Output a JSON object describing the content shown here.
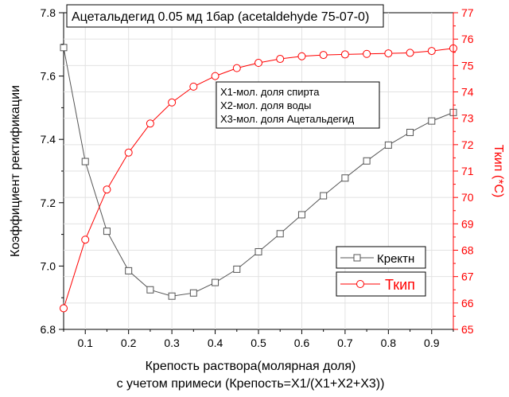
{
  "chart_data": {
    "type": "line",
    "title": "Ацетальдегид  0.05 мд 1бар (acetaldehyde 75-07-0)",
    "xlabel_line1": "Крепость раствора(молярная доля)",
    "xlabel_line2": "с учетом примеси (Крепость=X1/(X1+X2+X3))",
    "ylabel_left": "Коэффициент ректификации",
    "ylabel_right": "Ткип (*C)",
    "xlim": [
      0.05,
      0.95
    ],
    "ylim_left": [
      6.8,
      7.8
    ],
    "ylim_right": [
      65,
      77
    ],
    "xticks": [
      0.1,
      0.2,
      0.3,
      0.4,
      0.5,
      0.6,
      0.7,
      0.8,
      0.9
    ],
    "xtick_labels": [
      "0.1",
      "0.2",
      "0.3",
      "0.4",
      "0.5",
      "0.6",
      "0.7",
      "0.8",
      "0.9"
    ],
    "yticks_left": [
      6.8,
      7.0,
      7.2,
      7.4,
      7.6,
      7.8
    ],
    "ytick_labels_left": [
      "6.8",
      "7.0",
      "7.2",
      "7.4",
      "7.6",
      "7.8"
    ],
    "yticks_right": [
      65,
      66,
      67,
      68,
      69,
      70,
      71,
      72,
      73,
      74,
      75,
      76,
      77
    ],
    "ytick_labels_right": [
      "65",
      "66",
      "67",
      "68",
      "69",
      "70",
      "71",
      "72",
      "73",
      "74",
      "75",
      "76",
      "77"
    ],
    "grid": true,
    "annotation_lines": [
      "X1-мол. доля спирта",
      "X2-мол. доля воды",
      "X3-мол. доля Ацетальдегид"
    ],
    "x": [
      0.05,
      0.1,
      0.15,
      0.2,
      0.25,
      0.3,
      0.35,
      0.4,
      0.45,
      0.5,
      0.55,
      0.6,
      0.65,
      0.7,
      0.75,
      0.8,
      0.85,
      0.9,
      0.95
    ],
    "series": [
      {
        "name": "Кректн",
        "axis": "left",
        "color": "#555555",
        "marker": "square",
        "values": [
          7.69,
          7.33,
          7.11,
          6.985,
          6.925,
          6.905,
          6.915,
          6.948,
          6.99,
          7.045,
          7.102,
          7.162,
          7.222,
          7.278,
          7.332,
          7.382,
          7.422,
          7.458,
          7.485
        ]
      },
      {
        "name": "Ткип",
        "axis": "right",
        "color": "#ff0000",
        "marker": "circle",
        "values": [
          65.8,
          68.4,
          70.3,
          71.7,
          72.8,
          73.6,
          74.2,
          74.6,
          74.9,
          75.1,
          75.25,
          75.35,
          75.4,
          75.42,
          75.44,
          75.46,
          75.48,
          75.55,
          75.65
        ]
      }
    ],
    "legend": [
      {
        "label": "Кректн",
        "color": "#555555",
        "marker": "square"
      },
      {
        "label": "Ткип",
        "color": "#ff0000",
        "marker": "circle"
      }
    ]
  }
}
